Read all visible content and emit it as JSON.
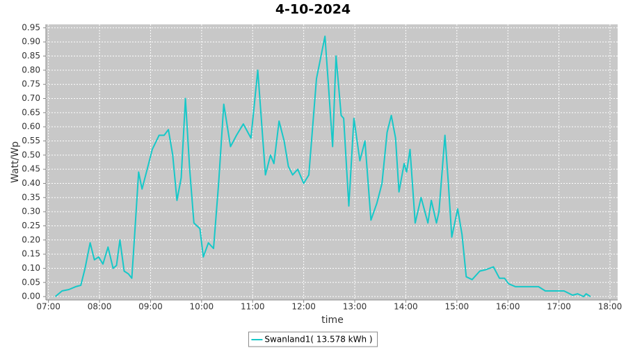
{
  "chart_data": {
    "type": "line",
    "title": "4-10-2024",
    "x_label": "time",
    "y_label": "Watt/Wp",
    "x": [
      "07:08",
      "07:16",
      "07:24",
      "07:32",
      "07:38",
      "07:43",
      "07:49",
      "07:54",
      "07:59",
      "08:04",
      "08:10",
      "08:16",
      "08:20",
      "08:24",
      "08:29",
      "08:34",
      "08:38",
      "08:42",
      "08:46",
      "08:50",
      "08:56",
      "09:02",
      "09:10",
      "09:16",
      "09:21",
      "09:26",
      "09:31",
      "09:36",
      "09:41",
      "09:46",
      "09:51",
      "09:58",
      "10:02",
      "10:08",
      "10:14",
      "10:20",
      "10:26",
      "10:34",
      "10:41",
      "10:49",
      "10:58",
      "11:06",
      "11:15",
      "11:21",
      "11:25",
      "11:31",
      "11:37",
      "11:42",
      "11:47",
      "11:53",
      "12:00",
      "12:06",
      "12:15",
      "12:25",
      "12:29",
      "12:34",
      "12:38",
      "12:44",
      "12:47",
      "12:53",
      "12:59",
      "13:06",
      "13:12",
      "13:19",
      "13:26",
      "13:32",
      "13:38",
      "13:43",
      "13:48",
      "13:52",
      "13:58",
      "14:01",
      "14:05",
      "14:11",
      "14:18",
      "14:26",
      "14:30",
      "14:36",
      "14:39",
      "14:46",
      "14:50",
      "14:54",
      "15:01",
      "15:06",
      "15:11",
      "15:18",
      "15:27",
      "15:34",
      "15:43",
      "15:50",
      "15:56",
      "16:01",
      "16:09",
      "16:36",
      "16:44",
      "17:06",
      "17:16",
      "17:22",
      "17:29",
      "17:32",
      "17:37"
    ],
    "series": [
      {
        "name": "Swanland1( 13.578 kWh )",
        "color": "#16c8c8",
        "values": [
          0.0,
          0.02,
          0.025,
          0.035,
          0.04,
          0.1,
          0.19,
          0.13,
          0.14,
          0.115,
          0.175,
          0.1,
          0.11,
          0.2,
          0.09,
          0.08,
          0.065,
          0.25,
          0.44,
          0.38,
          0.45,
          0.52,
          0.57,
          0.57,
          0.59,
          0.5,
          0.34,
          0.42,
          0.7,
          0.45,
          0.26,
          0.24,
          0.14,
          0.19,
          0.17,
          0.4,
          0.68,
          0.53,
          0.57,
          0.61,
          0.56,
          0.8,
          0.43,
          0.5,
          0.47,
          0.62,
          0.55,
          0.46,
          0.43,
          0.45,
          0.4,
          0.43,
          0.77,
          0.92,
          0.75,
          0.53,
          0.85,
          0.64,
          0.63,
          0.32,
          0.63,
          0.48,
          0.55,
          0.27,
          0.33,
          0.4,
          0.58,
          0.64,
          0.56,
          0.37,
          0.47,
          0.44,
          0.52,
          0.26,
          0.35,
          0.26,
          0.34,
          0.26,
          0.3,
          0.57,
          0.4,
          0.21,
          0.31,
          0.22,
          0.07,
          0.06,
          0.09,
          0.095,
          0.105,
          0.065,
          0.065,
          0.045,
          0.035,
          0.035,
          0.02,
          0.02,
          0.005,
          0.01,
          0.0,
          0.01,
          0.0
        ]
      }
    ],
    "xlim": [
      "06:57",
      "18:09"
    ],
    "xticks": [
      "07:00",
      "08:00",
      "09:00",
      "10:00",
      "11:00",
      "12:00",
      "13:00",
      "14:00",
      "15:00",
      "16:00",
      "17:00",
      "18:00"
    ],
    "ylim": [
      -0.012,
      0.962
    ],
    "yticks": [
      {
        "value": 0,
        "label": "0.00"
      },
      {
        "value": 0.05,
        "label": "0.05"
      },
      {
        "value": 0.1,
        "label": "0.10"
      },
      {
        "value": 0.15,
        "label": "0.15"
      },
      {
        "value": 0.2,
        "label": "0.20"
      },
      {
        "value": 0.25,
        "label": "0.25"
      },
      {
        "value": 0.3,
        "label": "0.30"
      },
      {
        "value": 0.35,
        "label": "0.35"
      },
      {
        "value": 0.4,
        "label": "0.40"
      },
      {
        "value": 0.45,
        "label": "0.45"
      },
      {
        "value": 0.5,
        "label": "0.50"
      },
      {
        "value": 0.55,
        "label": "0.55"
      },
      {
        "value": 0.6,
        "label": "0.60"
      },
      {
        "value": 0.65,
        "label": "0.65"
      },
      {
        "value": 0.7,
        "label": "0.70"
      },
      {
        "value": 0.75,
        "label": "0.75"
      },
      {
        "value": 0.8,
        "label": "0.80"
      },
      {
        "value": 0.85,
        "label": "0.85"
      },
      {
        "value": 0.9,
        "label": "0.90"
      },
      {
        "value": 0.95,
        "label": "0.95"
      }
    ],
    "grid": true,
    "legend": "bottom"
  }
}
